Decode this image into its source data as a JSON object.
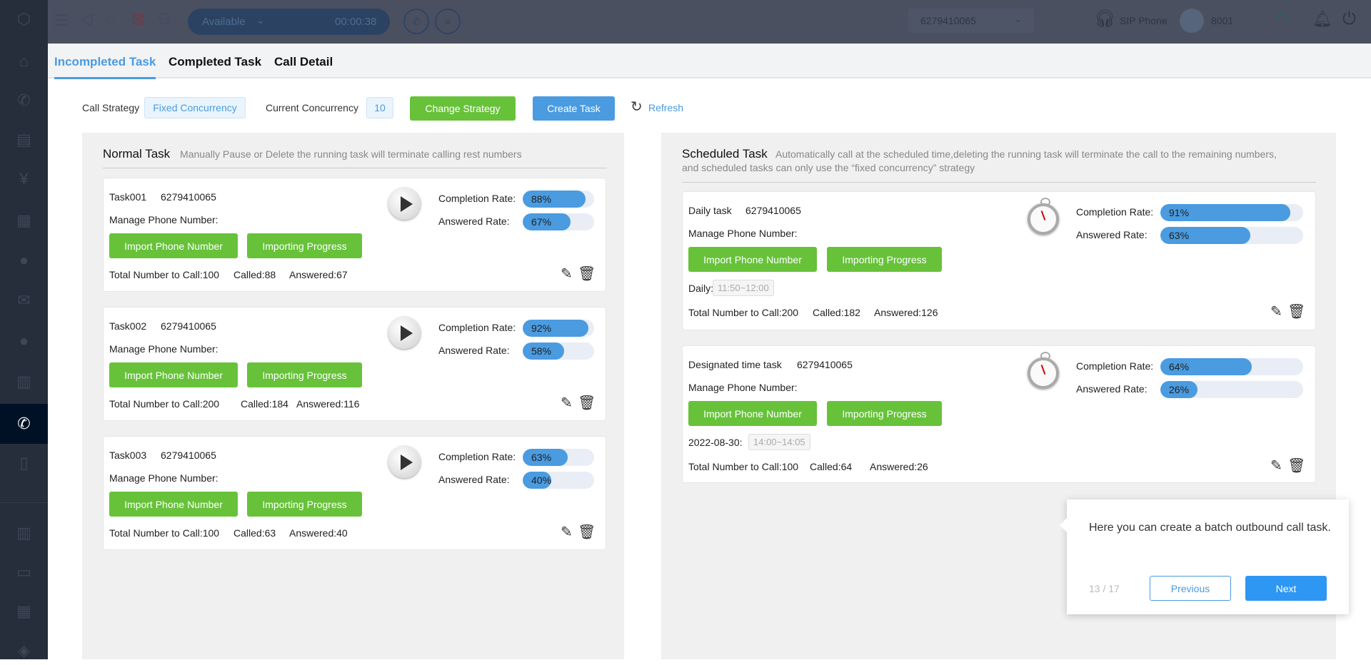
{
  "topbar": {
    "status": "Available",
    "timer": "00:00:38",
    "number": "6279410065",
    "phone_type": "SIP Phone",
    "extension": "8001"
  },
  "tabs": [
    "Incompleted Task",
    "Completed Task",
    "Call Detail"
  ],
  "toolbar": {
    "strategy_label": "Call Strategy",
    "strategy_value": "Fixed Concurrency",
    "concurrency_label": "Current Concurrency",
    "concurrency_value": "10",
    "change_strategy": "Change Strategy",
    "create_task": "Create Task",
    "refresh": "Refresh"
  },
  "normal": {
    "title": "Normal Task",
    "note": "Manually Pause or Delete the running task will terminate calling rest numbers",
    "tasks": [
      {
        "name": "Task001",
        "number": "6279410065",
        "manage": "Manage Phone Number:",
        "import": "Import Phone Number",
        "progress": "Importing Progress",
        "comp_label": "Completion Rate:",
        "comp": 88,
        "comp_text": "88%",
        "ans_label": "Answered Rate:",
        "ans": 67,
        "ans_text": "67%",
        "total": "Total Number to Call:100",
        "called": "Called:88",
        "answered": "Answered:67"
      },
      {
        "name": "Task002",
        "number": "6279410065",
        "manage": "Manage Phone Number:",
        "import": "Import Phone Number",
        "progress": "Importing Progress",
        "comp_label": "Completion Rate:",
        "comp": 92,
        "comp_text": "92%",
        "ans_label": "Answered Rate:",
        "ans": 58,
        "ans_text": "58%",
        "total": "Total Number to Call:200",
        "called": "Called:184",
        "answered": "Answered:116"
      },
      {
        "name": "Task003",
        "number": "6279410065",
        "manage": "Manage Phone Number:",
        "import": "Import Phone Number",
        "progress": "Importing Progress",
        "comp_label": "Completion Rate:",
        "comp": 63,
        "comp_text": "63%",
        "ans_label": "Answered Rate:",
        "ans": 40,
        "ans_text": "40%",
        "total": "Total Number to Call:100",
        "called": "Called:63",
        "answered": "Answered:40"
      }
    ]
  },
  "scheduled": {
    "title": "Scheduled Task",
    "note1": "Automatically call at the scheduled time,deleting the running task will terminate the call to the remaining numbers,",
    "note2": "and scheduled tasks can only use the “fixed concurrency” strategy",
    "tasks": [
      {
        "name": "Daily task",
        "number": "6279410065",
        "manage": "Manage Phone Number:",
        "import": "Import Phone Number",
        "progress": "Importing Progress",
        "comp_label": "Completion Rate:",
        "comp": 91,
        "comp_text": "91%",
        "ans_label": "Answered Rate:",
        "ans": 63,
        "ans_text": "63%",
        "sched_label": "Daily:",
        "sched_time": "11:50~12:00",
        "total": "Total Number to Call:200",
        "called": "Called:182",
        "answered": "Answered:126"
      },
      {
        "name": "Designated time task",
        "number": "6279410065",
        "manage": "Manage Phone Number:",
        "import": "Import Phone Number",
        "progress": "Importing Progress",
        "comp_label": "Completion Rate:",
        "comp": 64,
        "comp_text": "64%",
        "ans_label": "Answered Rate:",
        "ans": 26,
        "ans_text": "26%",
        "sched_label": "2022-08-30:",
        "sched_time": "14:00~14:05",
        "total": "Total Number to Call:100",
        "called": "Called:64",
        "answered": "Answered:26"
      }
    ]
  },
  "tour": {
    "text": "Here you can create a batch outbound call task.",
    "step": "13 / 17",
    "previous": "Previous",
    "next": "Next"
  },
  "colors": {
    "accent": "#4a9be0",
    "green": "#67c23a",
    "sidebar": "#262d3b"
  }
}
